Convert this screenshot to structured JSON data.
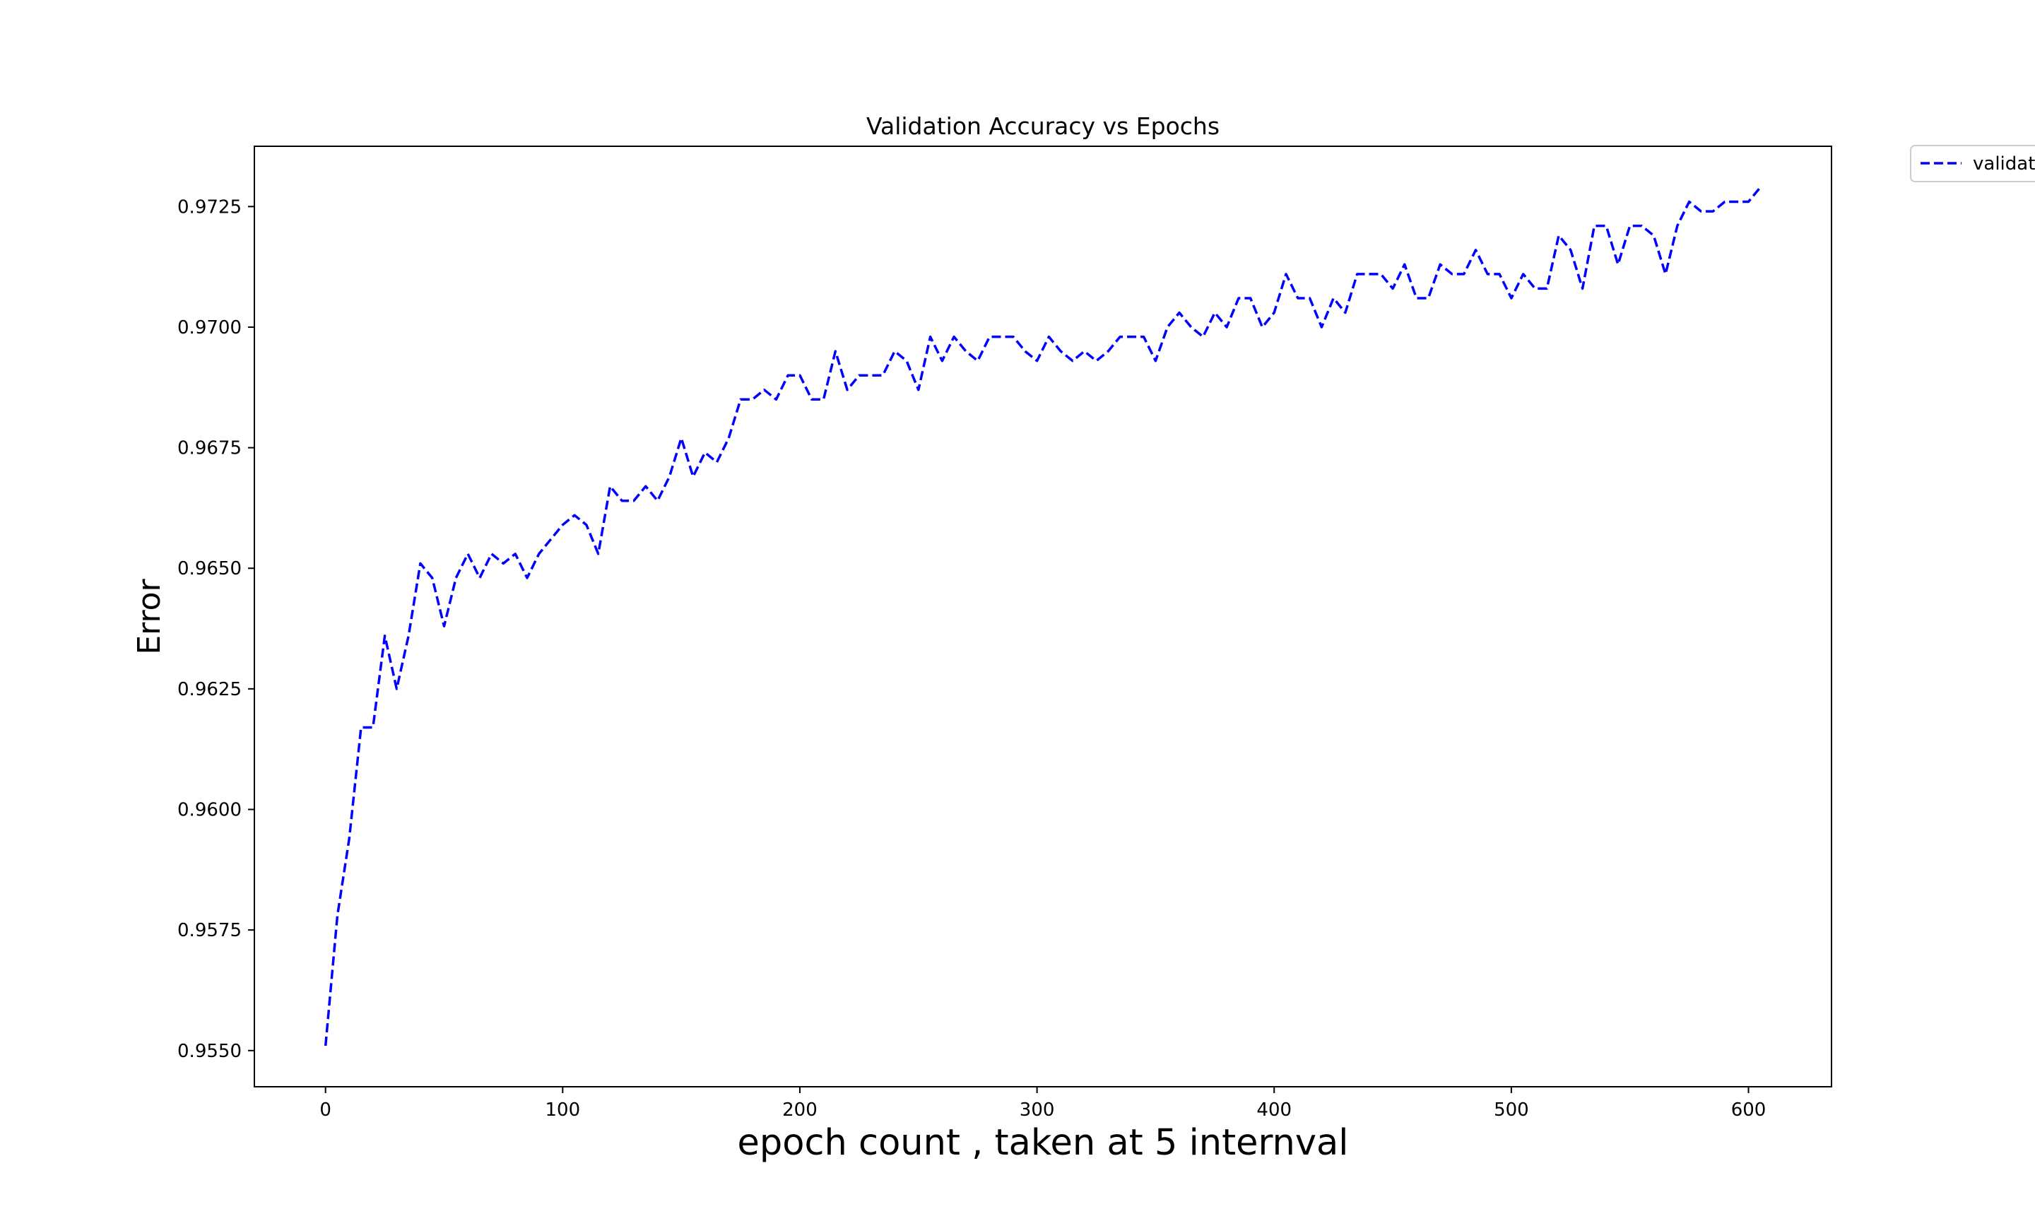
{
  "chart_data": {
    "type": "line",
    "title": "Validation Accuracy vs Epochs",
    "xlabel": "epoch count , taken at 5 internval",
    "ylabel": "Error",
    "xlim": [
      -30,
      635
    ],
    "ylim": [
      0.95425,
      0.97375
    ],
    "x_ticks": [
      0,
      100,
      200,
      300,
      400,
      500,
      600
    ],
    "y_ticks": [
      0.955,
      0.9575,
      0.96,
      0.9625,
      0.965,
      0.9675,
      0.97,
      0.9725
    ],
    "x_tick_labels": [
      "0",
      "100",
      "200",
      "300",
      "400",
      "500",
      "600"
    ],
    "y_tick_labels": [
      "0.9550",
      "0.9575",
      "0.9600",
      "0.9625",
      "0.9650",
      "0.9675",
      "0.9700",
      "0.9725"
    ],
    "grid": false,
    "legend_position": "outside-top-right",
    "legend_label": "validat",
    "series": [
      {
        "name": "validat",
        "color": "#0000ff",
        "style": "dashed",
        "x": [
          0,
          5,
          10,
          15,
          20,
          25,
          30,
          35,
          40,
          45,
          50,
          55,
          60,
          65,
          70,
          75,
          80,
          85,
          90,
          95,
          100,
          105,
          110,
          115,
          120,
          125,
          130,
          135,
          140,
          145,
          150,
          155,
          160,
          165,
          170,
          175,
          180,
          185,
          190,
          195,
          200,
          205,
          210,
          215,
          220,
          225,
          230,
          235,
          240,
          245,
          250,
          255,
          260,
          265,
          270,
          275,
          280,
          285,
          290,
          295,
          300,
          305,
          310,
          315,
          320,
          325,
          330,
          335,
          340,
          345,
          350,
          355,
          360,
          365,
          370,
          375,
          380,
          385,
          390,
          395,
          400,
          405,
          410,
          415,
          420,
          425,
          430,
          435,
          440,
          445,
          450,
          455,
          460,
          465,
          470,
          475,
          480,
          485,
          490,
          495,
          500,
          505,
          510,
          515,
          520,
          525,
          530,
          535,
          540,
          545,
          550,
          555,
          560,
          565,
          570,
          575,
          580,
          585,
          590,
          595,
          600,
          605
        ],
        "y": [
          0.9551,
          0.9578,
          0.9594,
          0.9617,
          0.9617,
          0.9636,
          0.9625,
          0.9636,
          0.9651,
          0.9648,
          0.9638,
          0.9648,
          0.9653,
          0.9648,
          0.9653,
          0.9651,
          0.9653,
          0.9648,
          0.9653,
          0.9656,
          0.9659,
          0.9661,
          0.9659,
          0.9653,
          0.9667,
          0.9664,
          0.9664,
          0.9667,
          0.9664,
          0.9669,
          0.9677,
          0.9669,
          0.9674,
          0.9672,
          0.9677,
          0.9685,
          0.9685,
          0.9687,
          0.9685,
          0.969,
          0.969,
          0.9685,
          0.9685,
          0.9695,
          0.9687,
          0.969,
          0.969,
          0.969,
          0.9695,
          0.9693,
          0.9687,
          0.9698,
          0.9693,
          0.9698,
          0.9695,
          0.9693,
          0.9698,
          0.9698,
          0.9698,
          0.9695,
          0.9693,
          0.9698,
          0.9695,
          0.9693,
          0.9695,
          0.9693,
          0.9695,
          0.9698,
          0.9698,
          0.9698,
          0.9693,
          0.97,
          0.9703,
          0.97,
          0.9698,
          0.9703,
          0.97,
          0.9706,
          0.9706,
          0.97,
          0.9703,
          0.9711,
          0.9706,
          0.9706,
          0.97,
          0.9706,
          0.9703,
          0.9711,
          0.9711,
          0.9711,
          0.9708,
          0.9713,
          0.9706,
          0.9706,
          0.9713,
          0.9711,
          0.9711,
          0.9716,
          0.9711,
          0.9711,
          0.9706,
          0.9711,
          0.9708,
          0.9708,
          0.9719,
          0.9716,
          0.9708,
          0.9721,
          0.9721,
          0.9713,
          0.9721,
          0.9721,
          0.9719,
          0.9711,
          0.9721,
          0.9726,
          0.9724,
          0.9724,
          0.9726,
          0.9726,
          0.9726,
          0.9729
        ]
      }
    ]
  }
}
